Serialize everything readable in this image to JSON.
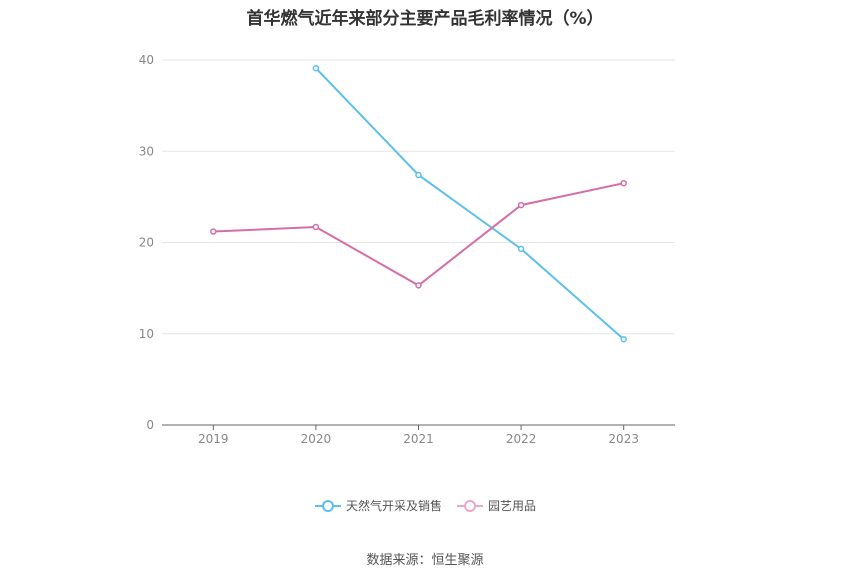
{
  "chart_data": {
    "type": "line",
    "title": "首华燃气近年来部分主要产品毛利率情况（%）",
    "categories": [
      "2019",
      "2020",
      "2021",
      "2022",
      "2023"
    ],
    "ylim": [
      0,
      40
    ],
    "yticks": [
      "0",
      "10",
      "20",
      "30",
      "40"
    ],
    "grid": true,
    "legend_position": "bottom",
    "series": [
      {
        "name": "天然气开采及销售",
        "color": "#5bc0eb",
        "values": [
          null,
          39.1,
          27.4,
          19.3,
          9.4
        ]
      },
      {
        "name": "园艺用品",
        "color": "#d46ea8",
        "values": [
          21.2,
          21.7,
          15.3,
          24.1,
          26.5
        ]
      }
    ]
  },
  "source": "数据来源：恒生聚源"
}
